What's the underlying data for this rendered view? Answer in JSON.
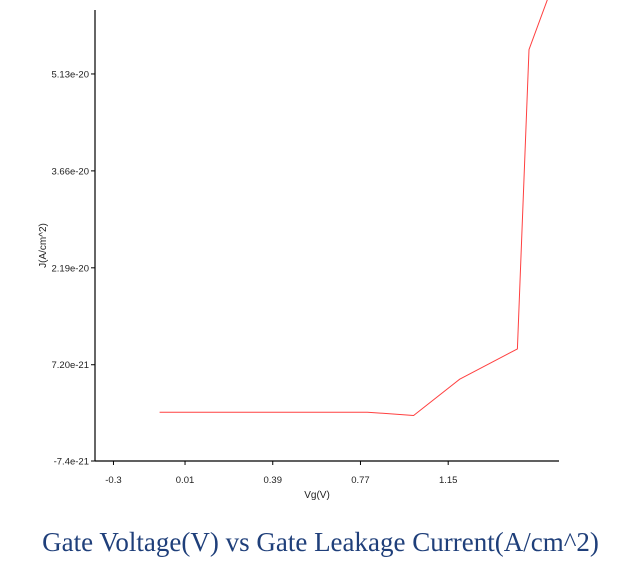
{
  "caption": "Gate Voltage(V) vs Gate Leakage Current(A/cm^2)",
  "colors": {
    "line": "#ff4040",
    "axis": "#000000",
    "caption": "#1f3f7a"
  },
  "chart_data": {
    "type": "line",
    "title": "Gate Voltage(V) vs Gate Leakage Current(A/cm^2)",
    "xlabel": "Vg(V)",
    "ylabel": "J(A/cm^2)",
    "xlim": [
      -0.38,
      1.63
    ],
    "ylim": [
      -7.4e-21,
      6.1e-20
    ],
    "x_ticks": [
      -0.3,
      0.01,
      0.39,
      0.77,
      1.15
    ],
    "x_tick_labels": [
      "-0.3",
      "0.01",
      "0.39",
      "0.77",
      "1.15"
    ],
    "y_ticks": [
      -7.4e-21,
      7.2e-21,
      2.19e-20,
      3.66e-20,
      5.13e-20
    ],
    "y_tick_labels": [
      "-7.4e-21",
      "7.20e-21",
      "2.19e-20",
      "3.66e-20",
      "5.13e-20"
    ],
    "grid": false,
    "series": [
      {
        "name": "J",
        "x": [
          -0.1,
          0.2,
          0.5,
          0.8,
          1.0,
          1.2,
          1.45,
          1.5,
          1.6
        ],
        "y": [
          0.0,
          0.0,
          0.0,
          0.0,
          -5e-22,
          5e-21,
          9.6e-21,
          5.5e-20,
          6.45e-20
        ]
      }
    ]
  }
}
